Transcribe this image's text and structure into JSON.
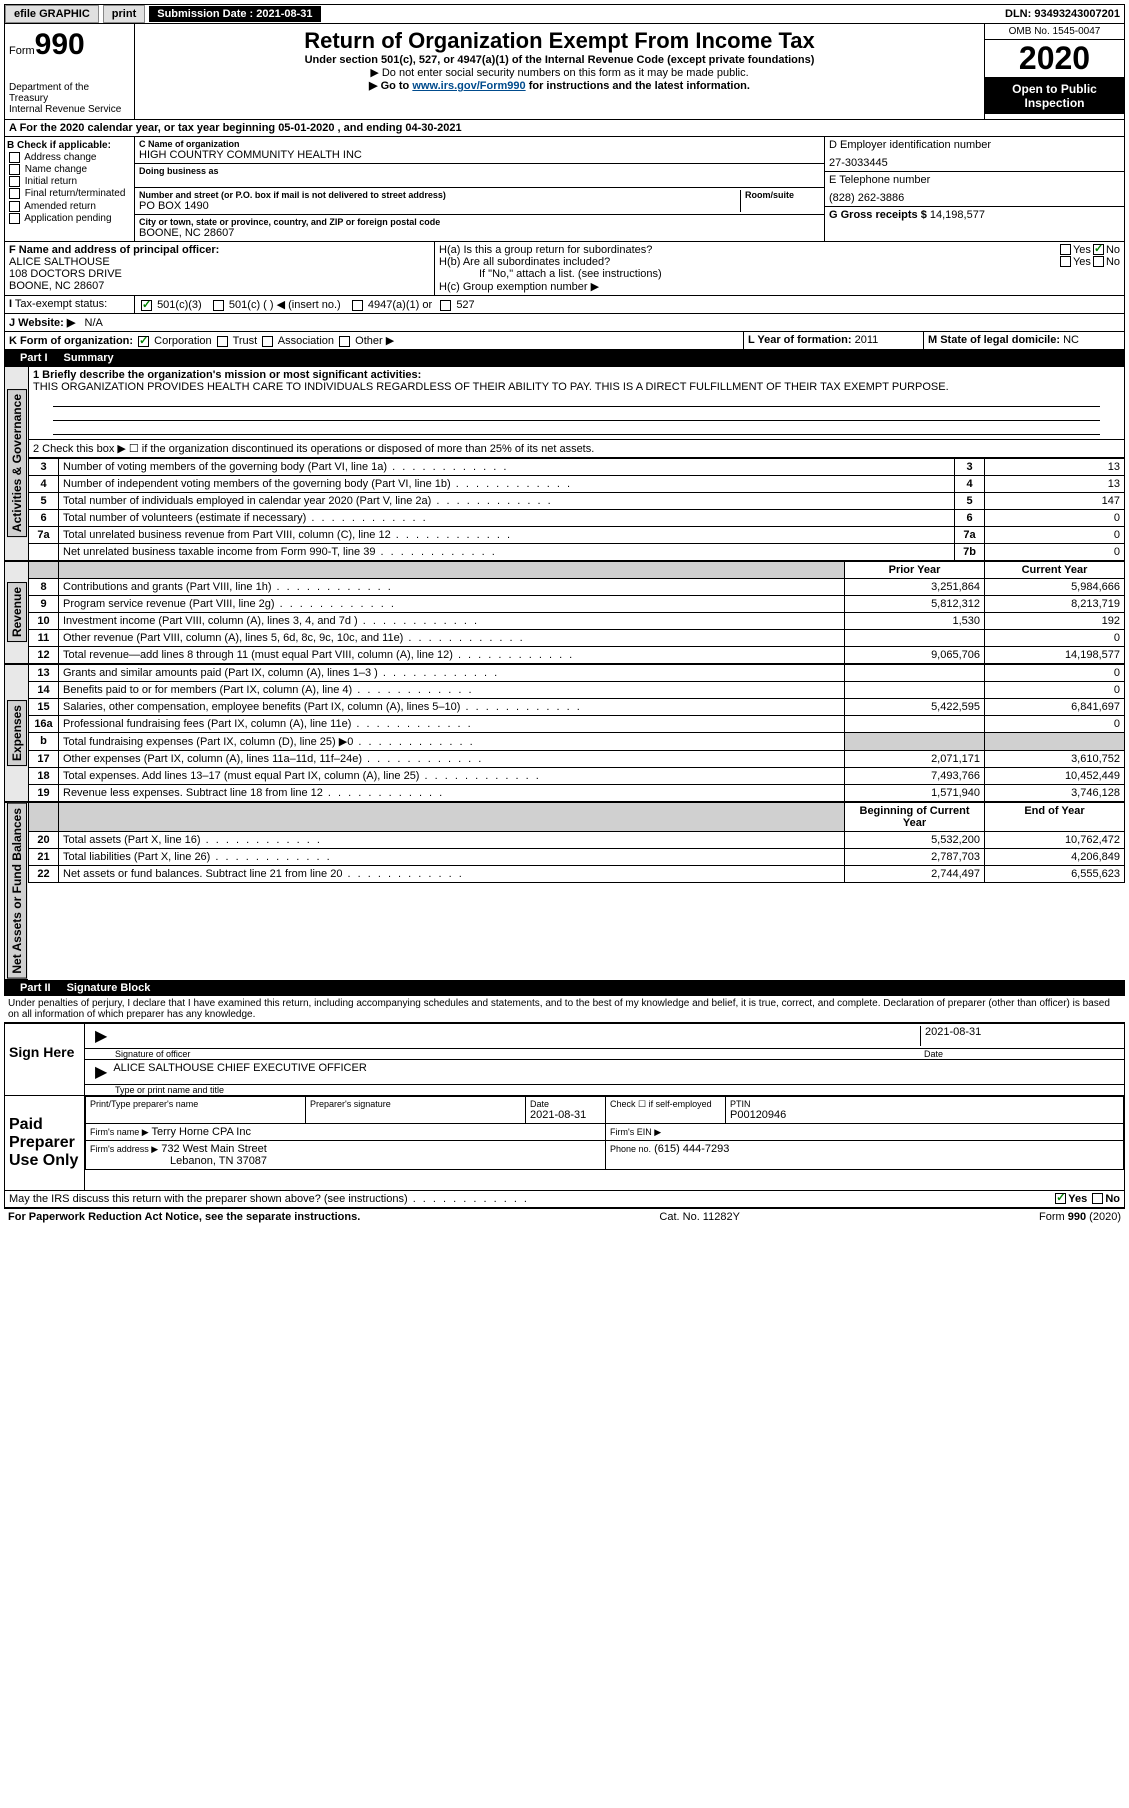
{
  "topbar": {
    "efile": "efile GRAPHIC",
    "print": "print",
    "sub_label": "Submission Date : 2021-08-31",
    "dln": "DLN: 93493243007201"
  },
  "header": {
    "form_label": "Form",
    "form_no": "990",
    "dept": "Department of the Treasury",
    "irs": "Internal Revenue Service",
    "title": "Return of Organization Exempt From Income Tax",
    "sub1": "Under section 501(c), 527, or 4947(a)(1) of the Internal Revenue Code (except private foundations)",
    "sub2": "▶ Do not enter social security numbers on this form as it may be made public.",
    "sub3_pre": "▶ Go to ",
    "sub3_link": "www.irs.gov/Form990",
    "sub3_post": " for instructions and the latest information.",
    "omb": "OMB No. 1545-0047",
    "year": "2020",
    "open": "Open to Public Inspection"
  },
  "lineA": "A For the 2020 calendar year, or tax year beginning 05-01-2020   , and ending 04-30-2021",
  "boxB": {
    "label": "B Check if applicable:",
    "items": [
      "Address change",
      "Name change",
      "Initial return",
      "Final return/terminated",
      "Amended return",
      "Application pending"
    ]
  },
  "boxC": {
    "name_label": "C Name of organization",
    "name": "HIGH COUNTRY COMMUNITY HEALTH INC",
    "dba_label": "Doing business as",
    "addr_label": "Number and street (or P.O. box if mail is not delivered to street address)",
    "room_label": "Room/suite",
    "addr": "PO BOX 1490",
    "city_label": "City or town, state or province, country, and ZIP or foreign postal code",
    "city": "BOONE, NC  28607"
  },
  "boxD": {
    "label": "D Employer identification number",
    "val": "27-3033445"
  },
  "boxE": {
    "label": "E Telephone number",
    "val": "(828) 262-3886"
  },
  "boxG": {
    "label": "G Gross receipts $",
    "val": "14,198,577"
  },
  "boxF": {
    "label": "F  Name and address of principal officer:",
    "name": "ALICE SALTHOUSE",
    "addr1": "108 DOCTORS DRIVE",
    "addr2": "BOONE, NC  28607"
  },
  "boxH": {
    "ha": "H(a)  Is this a group return for subordinates?",
    "hb": "H(b)  Are all subordinates included?",
    "hb_note": "If \"No,\" attach a list. (see instructions)",
    "hc": "H(c)  Group exemption number ▶"
  },
  "taxexempt": {
    "label": "Tax-exempt status:",
    "c3": "501(c)(3)",
    "c": "501(c) (  ) ◀ (insert no.)",
    "a1": "4947(a)(1) or",
    "527": "527"
  },
  "boxJ": {
    "label": "J Website: ▶",
    "val": "N/A"
  },
  "boxK": {
    "label": "K Form of organization:",
    "corp": "Corporation",
    "trust": "Trust",
    "assoc": "Association",
    "other": "Other ▶"
  },
  "boxL": {
    "label": "L Year of formation:",
    "val": "2011"
  },
  "boxM": {
    "label": "M State of legal domicile:",
    "val": "NC"
  },
  "part1": {
    "num": "Part I",
    "title": "Summary"
  },
  "summary": {
    "line1_label": "1  Briefly describe the organization's mission or most significant activities:",
    "line1_val": "THIS ORGANIZATION PROVIDES HEALTH CARE TO INDIVIDUALS REGARDLESS OF THEIR ABILITY TO PAY. THIS IS A DIRECT FULFILLMENT OF THEIR TAX EXEMPT PURPOSE.",
    "line2": "2    Check this box ▶ ☐  if the organization discontinued its operations or disposed of more than 25% of its net assets.",
    "rows_ag": [
      {
        "n": "3",
        "d": "Number of voting members of the governing body (Part VI, line 1a)",
        "b": "3",
        "v": "13"
      },
      {
        "n": "4",
        "d": "Number of independent voting members of the governing body (Part VI, line 1b)",
        "b": "4",
        "v": "13"
      },
      {
        "n": "5",
        "d": "Total number of individuals employed in calendar year 2020 (Part V, line 2a)",
        "b": "5",
        "v": "147"
      },
      {
        "n": "6",
        "d": "Total number of volunteers (estimate if necessary)",
        "b": "6",
        "v": "0"
      },
      {
        "n": "7a",
        "d": "Total unrelated business revenue from Part VIII, column (C), line 12",
        "b": "7a",
        "v": "0"
      },
      {
        "n": "",
        "d": "Net unrelated business taxable income from Form 990-T, line 39",
        "b": "7b",
        "v": "0"
      }
    ],
    "col_prior": "Prior Year",
    "col_curr": "Current Year",
    "rows_rev": [
      {
        "n": "8",
        "d": "Contributions and grants (Part VIII, line 1h)",
        "p": "3,251,864",
        "c": "5,984,666"
      },
      {
        "n": "9",
        "d": "Program service revenue (Part VIII, line 2g)",
        "p": "5,812,312",
        "c": "8,213,719"
      },
      {
        "n": "10",
        "d": "Investment income (Part VIII, column (A), lines 3, 4, and 7d )",
        "p": "1,530",
        "c": "192"
      },
      {
        "n": "11",
        "d": "Other revenue (Part VIII, column (A), lines 5, 6d, 8c, 9c, 10c, and 11e)",
        "p": "",
        "c": "0"
      },
      {
        "n": "12",
        "d": "Total revenue—add lines 8 through 11 (must equal Part VIII, column (A), line 12)",
        "p": "9,065,706",
        "c": "14,198,577"
      }
    ],
    "rows_exp": [
      {
        "n": "13",
        "d": "Grants and similar amounts paid (Part IX, column (A), lines 1–3 )",
        "p": "",
        "c": "0"
      },
      {
        "n": "14",
        "d": "Benefits paid to or for members (Part IX, column (A), line 4)",
        "p": "",
        "c": "0"
      },
      {
        "n": "15",
        "d": "Salaries, other compensation, employee benefits (Part IX, column (A), lines 5–10)",
        "p": "5,422,595",
        "c": "6,841,697"
      },
      {
        "n": "16a",
        "d": "Professional fundraising fees (Part IX, column (A), line 11e)",
        "p": "",
        "c": "0"
      },
      {
        "n": "b",
        "d": "Total fundraising expenses (Part IX, column (D), line 25) ▶0",
        "p": "SHADE",
        "c": "SHADE"
      },
      {
        "n": "17",
        "d": "Other expenses (Part IX, column (A), lines 11a–11d, 11f–24e)",
        "p": "2,071,171",
        "c": "3,610,752"
      },
      {
        "n": "18",
        "d": "Total expenses. Add lines 13–17 (must equal Part IX, column (A), line 25)",
        "p": "7,493,766",
        "c": "10,452,449"
      },
      {
        "n": "19",
        "d": "Revenue less expenses. Subtract line 18 from line 12",
        "p": "1,571,940",
        "c": "3,746,128"
      }
    ],
    "col_begin": "Beginning of Current Year",
    "col_end": "End of Year",
    "rows_na": [
      {
        "n": "20",
        "d": "Total assets (Part X, line 16)",
        "p": "5,532,200",
        "c": "10,762,472"
      },
      {
        "n": "21",
        "d": "Total liabilities (Part X, line 26)",
        "p": "2,787,703",
        "c": "4,206,849"
      },
      {
        "n": "22",
        "d": "Net assets or fund balances. Subtract line 21 from line 20",
        "p": "2,744,497",
        "c": "6,555,623"
      }
    ],
    "vlabels": {
      "ag": "Activities & Governance",
      "rev": "Revenue",
      "exp": "Expenses",
      "na": "Net Assets or Fund Balances"
    }
  },
  "part2": {
    "num": "Part II",
    "title": "Signature Block"
  },
  "sig": {
    "decl": "Under penalties of perjury, I declare that I have examined this return, including accompanying schedules and statements, and to the best of my knowledge and belief, it is true, correct, and complete. Declaration of preparer (other than officer) is based on all information of which preparer has any knowledge.",
    "sign_here": "Sign Here",
    "sig_officer": "Signature of officer",
    "date": "Date",
    "date_val": "2021-08-31",
    "name_title": "ALICE SALTHOUSE  CHIEF EXECUTIVE OFFICER",
    "type_name": "Type or print name and title",
    "paid": "Paid Preparer Use Only",
    "prep_name_label": "Print/Type preparer's name",
    "prep_sig_label": "Preparer's signature",
    "prep_date_label": "Date",
    "prep_date": "2021-08-31",
    "check_self": "Check ☐  if self-employed",
    "ptin_label": "PTIN",
    "ptin": "P00120946",
    "firm_name_label": "Firm's name    ▶",
    "firm_name": "Terry Horne CPA Inc",
    "firm_ein_label": "Firm's EIN ▶",
    "firm_addr_label": "Firm's address ▶",
    "firm_addr1": "732 West Main Street",
    "firm_addr2": "Lebanon, TN  37087",
    "phone_label": "Phone no.",
    "phone": "(615) 444-7293",
    "discuss": "May the IRS discuss this return with the preparer shown above? (see instructions)",
    "yes": "Yes",
    "no": "No"
  },
  "footer": {
    "left": "For Paperwork Reduction Act Notice, see the separate instructions.",
    "mid": "Cat. No. 11282Y",
    "right": "Form 990 (2020)"
  }
}
